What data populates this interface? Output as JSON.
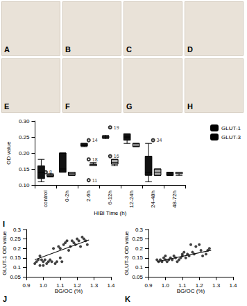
{
  "image_panels": {
    "labels": [
      "A",
      "B",
      "C",
      "D",
      "E",
      "F",
      "G",
      "H"
    ]
  },
  "chart_data": [
    {
      "type": "boxplot",
      "panel_label": "I",
      "categories": [
        "control",
        "0-2h",
        "2-6h",
        "6-12h",
        "12-24h",
        "24-48h",
        "48-72h"
      ],
      "x_label": "HIBI Time (h)",
      "y_label": "OD value",
      "ylim": [
        0.1,
        0.3
      ],
      "yticks": [
        {
          "value": 0.1,
          "label": "0.10"
        },
        0.15,
        {
          "value": 0.2,
          "label": "0.20"
        },
        0.25,
        {
          "value": 0.3,
          "label": "0.30"
        }
      ],
      "legend": "top-right",
      "grid": false,
      "series": [
        {
          "name": "GLUT-1",
          "color": "#111111",
          "values": [
            [
              0.11,
              0.12,
              0.14,
              0.16,
              0.18
            ],
            [
              0.14,
              0.14,
              0.15,
              0.2,
              0.2
            ],
            [
              0.22,
              0.222,
              0.225,
              0.23,
              0.23
            ],
            [
              0.245,
              0.248,
              0.25,
              0.252,
              0.255
            ],
            [
              0.23,
              0.24,
              0.25,
              0.26,
              0.26
            ],
            [
              0.11,
              0.13,
              0.14,
              0.19,
              0.23
            ],
            [
              0.13,
              0.13,
              0.14,
              0.14,
              0.14
            ]
          ],
          "outliers": [
            {
              "category": "2-6h",
              "value": 0.24,
              "label": "14"
            },
            {
              "category": "6-12h",
              "value": 0.28,
              "label": "19"
            }
          ]
        },
        {
          "name": "GLUT-3",
          "color": "#aaaaaa",
          "values": [
            [
              0.125,
              0.127,
              0.13,
              0.133,
              0.135
            ],
            [
              0.13,
              0.13,
              0.135,
              0.14,
              0.14
            ],
            [
              0.16,
              0.16,
              0.165,
              0.165,
              0.17
            ],
            [
              0.16,
              0.165,
              0.17,
              0.18,
              0.18
            ],
            [
              0.22,
              0.22,
              0.225,
              0.23,
              0.23
            ],
            [
              0.13,
              0.13,
              0.14,
              0.15,
              0.15
            ],
            [
              0.13,
              0.135,
              0.14,
              0.14,
              0.14
            ]
          ],
          "outliers": [
            {
              "category": "control",
              "value": 0.14,
              "label": "8"
            },
            {
              "category": "2-6h",
              "value": 0.18,
              "label": "18"
            },
            {
              "category": "2-6h",
              "value": 0.115,
              "label": "11"
            },
            {
              "category": "6-12h",
              "value": 0.19,
              "label": "16"
            },
            {
              "category": "24-48h",
              "value": 0.24,
              "label": "34"
            }
          ]
        }
      ]
    },
    {
      "type": "scatter",
      "panel_label": "J",
      "x_label": "BG/OC (%)",
      "y_label": "GLUT-1 OD value",
      "xlim": [
        0.9,
        1.4
      ],
      "xticks": [
        0.9,
        {
          "value": 1,
          "label": "1.0"
        },
        1.1,
        1.2,
        1.3,
        1.4
      ],
      "ylim": [
        0.05,
        0.3
      ],
      "yticks": [
        0.05,
        0.1,
        0.15,
        0.2,
        0.25,
        0.3
      ],
      "grid": false,
      "color": "#111111",
      "x": [
        0.95,
        0.96,
        0.97,
        0.98,
        0.98,
        0.99,
        1.0,
        1.0,
        1.01,
        1.02,
        1.03,
        1.04,
        1.05,
        1.06,
        1.07,
        1.08,
        1.09,
        1.1,
        1.1,
        1.11,
        1.12,
        1.13,
        1.14,
        1.15,
        1.16,
        1.17,
        1.18,
        1.19,
        1.2,
        1.21,
        1.22,
        1.23,
        1.24,
        1.25,
        1.26
      ],
      "y": [
        0.12,
        0.13,
        0.14,
        0.16,
        0.11,
        0.14,
        0.13,
        0.11,
        0.14,
        0.12,
        0.13,
        0.14,
        0.13,
        0.2,
        0.12,
        0.13,
        0.21,
        0.2,
        0.15,
        0.13,
        0.22,
        0.23,
        0.24,
        0.19,
        0.21,
        0.24,
        0.23,
        0.22,
        0.25,
        0.24,
        0.21,
        0.26,
        0.25,
        0.24,
        0.22
      ],
      "fit": {
        "x": [
          0.95,
          1.27
        ],
        "y": [
          0.14,
          0.245
        ]
      }
    },
    {
      "type": "scatter",
      "panel_label": "K",
      "x_label": "BG/OC (%)",
      "y_label": "GLUT-3 OD value",
      "xlim": [
        0.9,
        1.4
      ],
      "xticks": [
        0.9,
        {
          "value": 1,
          "label": "1.0"
        },
        1.1,
        1.2,
        1.3,
        1.4
      ],
      "ylim": [
        0.05,
        0.3
      ],
      "yticks": [
        0.05,
        0.1,
        0.15,
        0.2,
        0.25,
        0.3
      ],
      "grid": false,
      "color": "#111111",
      "x": [
        0.95,
        0.96,
        0.97,
        0.98,
        0.99,
        1.0,
        1.0,
        1.01,
        1.02,
        1.03,
        1.04,
        1.05,
        1.06,
        1.07,
        1.08,
        1.09,
        1.1,
        1.1,
        1.11,
        1.12,
        1.13,
        1.14,
        1.15,
        1.16,
        1.17,
        1.18,
        1.2,
        1.21,
        1.22,
        1.24,
        1.25,
        1.26
      ],
      "y": [
        0.14,
        0.13,
        0.14,
        0.13,
        0.15,
        0.14,
        0.16,
        0.13,
        0.14,
        0.15,
        0.14,
        0.16,
        0.15,
        0.13,
        0.14,
        0.15,
        0.17,
        0.16,
        0.18,
        0.15,
        0.17,
        0.16,
        0.22,
        0.18,
        0.17,
        0.21,
        0.22,
        0.19,
        0.16,
        0.17,
        0.19,
        0.2
      ],
      "fit": {
        "x": [
          0.95,
          1.27
        ],
        "y": [
          0.13,
          0.19
        ]
      }
    }
  ]
}
